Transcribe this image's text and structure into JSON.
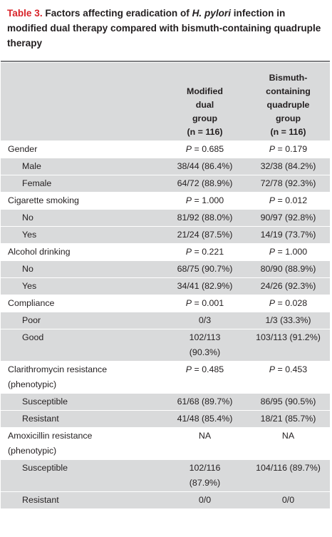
{
  "caption": {
    "label": "Table 3.",
    "title_before": "Factors affecting eradication of",
    "title_italic": "H. pylori",
    "title_after": "infection in modified dual therapy compared with bismuth-containing quadruple therapy"
  },
  "header": {
    "col1": "",
    "col2": [
      "Modified",
      "dual",
      "group",
      "(n = 116)"
    ],
    "col3": [
      "Bismuth-",
      "containing",
      "quadruple",
      "group",
      "(n = 116)"
    ]
  },
  "rows": [
    {
      "type": "cat",
      "label": [
        "Gender"
      ],
      "v1": [
        "= 0.685"
      ],
      "v2": [
        "= 0.179"
      ],
      "p": true,
      "shade": false
    },
    {
      "type": "sub",
      "label": [
        "Male"
      ],
      "v1": [
        "38/44 (86.4%)"
      ],
      "v2": [
        "32/38 (84.2%)"
      ],
      "p": false,
      "shade": true
    },
    {
      "type": "sub",
      "label": [
        "Female"
      ],
      "v1": [
        "64/72 (88.9%)"
      ],
      "v2": [
        "72/78 (92.3%)"
      ],
      "p": false,
      "shade": true
    },
    {
      "type": "cat",
      "label": [
        "Cigarette smoking"
      ],
      "v1": [
        "= 1.000"
      ],
      "v2": [
        "= 0.012"
      ],
      "p": true,
      "shade": false
    },
    {
      "type": "sub",
      "label": [
        "No"
      ],
      "v1": [
        "81/92 (88.0%)"
      ],
      "v2": [
        "90/97 (92.8%)"
      ],
      "p": false,
      "shade": true
    },
    {
      "type": "sub",
      "label": [
        "Yes"
      ],
      "v1": [
        "21/24 (87.5%)"
      ],
      "v2": [
        "14/19 (73.7%)"
      ],
      "p": false,
      "shade": true
    },
    {
      "type": "cat",
      "label": [
        "Alcohol drinking"
      ],
      "v1": [
        "= 0.221"
      ],
      "v2": [
        "= 1.000"
      ],
      "p": true,
      "shade": false
    },
    {
      "type": "sub",
      "label": [
        "No"
      ],
      "v1": [
        "68/75 (90.7%)"
      ],
      "v2": [
        "80/90 (88.9%)"
      ],
      "p": false,
      "shade": true
    },
    {
      "type": "sub",
      "label": [
        "Yes"
      ],
      "v1": [
        "34/41 (82.9%)"
      ],
      "v2": [
        "24/26 (92.3%)"
      ],
      "p": false,
      "shade": true
    },
    {
      "type": "cat",
      "label": [
        "Compliance"
      ],
      "v1": [
        "= 0.001"
      ],
      "v2": [
        "= 0.028"
      ],
      "p": true,
      "shade": false
    },
    {
      "type": "sub",
      "label": [
        "Poor"
      ],
      "v1": [
        "0/3"
      ],
      "v2": [
        "1/3 (33.3%)"
      ],
      "p": false,
      "shade": true
    },
    {
      "type": "sub",
      "label": [
        "Good"
      ],
      "v1": [
        "102/113",
        "(90.3%)"
      ],
      "v2": [
        "103/113 (91.2%)"
      ],
      "p": false,
      "shade": true
    },
    {
      "type": "cat",
      "label": [
        "Clarithromycin resistance",
        "(phenotypic)"
      ],
      "v1": [
        "= 0.485"
      ],
      "v2": [
        "= 0.453"
      ],
      "p": true,
      "shade": false
    },
    {
      "type": "sub",
      "label": [
        "Susceptible"
      ],
      "v1": [
        "61/68 (89.7%)"
      ],
      "v2": [
        "86/95 (90.5%)"
      ],
      "p": false,
      "shade": true
    },
    {
      "type": "sub",
      "label": [
        "Resistant"
      ],
      "v1": [
        "41/48 (85.4%)"
      ],
      "v2": [
        "18/21 (85.7%)"
      ],
      "p": false,
      "shade": true
    },
    {
      "type": "cat",
      "label": [
        "Amoxicillin resistance",
        "(phenotypic)"
      ],
      "v1": [
        "NA"
      ],
      "v2": [
        "NA"
      ],
      "p": false,
      "shade": false
    },
    {
      "type": "sub",
      "label": [
        "Susceptible"
      ],
      "v1": [
        "102/116",
        "(87.9%)"
      ],
      "v2": [
        "104/116 (89.7%)"
      ],
      "p": false,
      "shade": true
    },
    {
      "type": "sub",
      "label": [
        "Resistant"
      ],
      "v1": [
        "0/0"
      ],
      "v2": [
        "0/0"
      ],
      "p": false,
      "shade": true
    }
  ],
  "p_symbol": "P"
}
